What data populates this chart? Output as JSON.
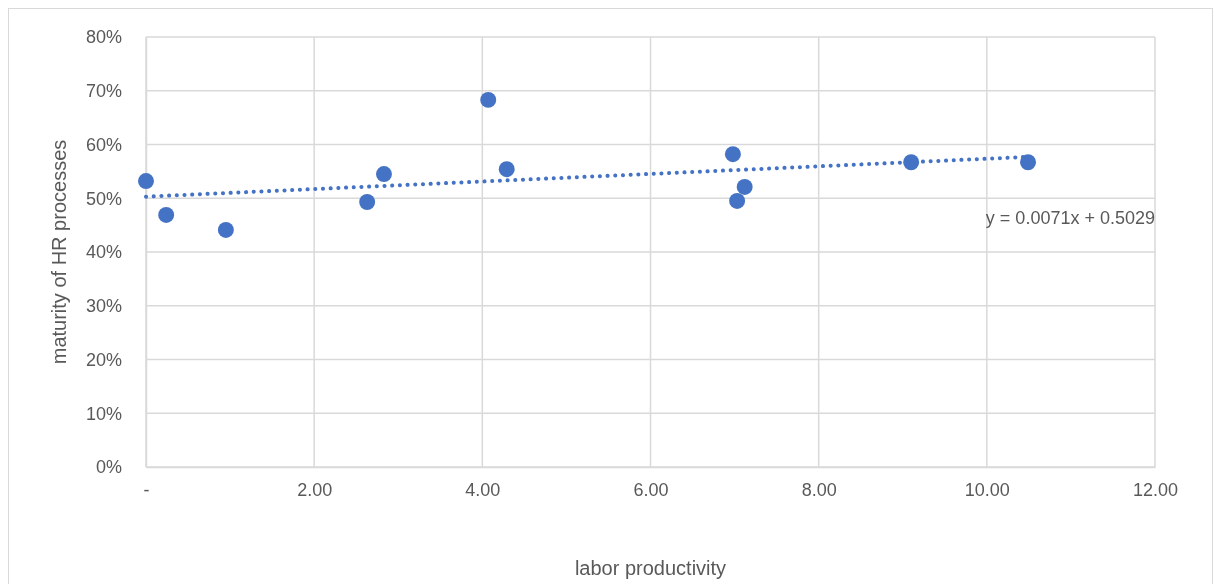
{
  "chart_data": {
    "type": "scatter",
    "xlabel": "labor productivity",
    "ylabel": "maturity of HR processes",
    "xlim": [
      0,
      12
    ],
    "xticks": [
      {
        "value": 0,
        "label": "-"
      },
      {
        "value": 2,
        "label": "2.00"
      },
      {
        "value": 4,
        "label": "4.00"
      },
      {
        "value": 6,
        "label": "6.00"
      },
      {
        "value": 8,
        "label": "8.00"
      },
      {
        "value": 10,
        "label": "10.00"
      },
      {
        "value": 12,
        "label": "12.00"
      }
    ],
    "ylim": [
      0,
      0.8
    ],
    "yticks": [
      {
        "value": 0,
        "label": "0%"
      },
      {
        "value": 0.1,
        "label": "10%"
      },
      {
        "value": 0.2,
        "label": "20%"
      },
      {
        "value": 0.3,
        "label": "30%"
      },
      {
        "value": 0.4,
        "label": "40%"
      },
      {
        "value": 0.5,
        "label": "50%"
      },
      {
        "value": 0.6,
        "label": "60%"
      },
      {
        "value": 0.7,
        "label": "70%"
      },
      {
        "value": 0.8,
        "label": "80%"
      }
    ],
    "grid": true,
    "series": [
      {
        "marker": "circle",
        "color": "#4472c4",
        "x": [
          0,
          0.24,
          0.95,
          2.63,
          2.83,
          4.07,
          4.29,
          6.98,
          7.03,
          7.12,
          9.1,
          10.49
        ],
        "values": [
          0.532,
          0.469,
          0.441,
          0.493,
          0.545,
          0.683,
          0.554,
          0.582,
          0.495,
          0.521,
          0.567,
          0.567
        ]
      },
      {
        "type": "line",
        "color": "#4472c4",
        "line_style": "dotted",
        "x": [
          0,
          10.49
        ],
        "values": [
          0.503,
          0.577
        ]
      }
    ],
    "annotations": [
      "y = 0.0071x + 0.5029"
    ]
  }
}
